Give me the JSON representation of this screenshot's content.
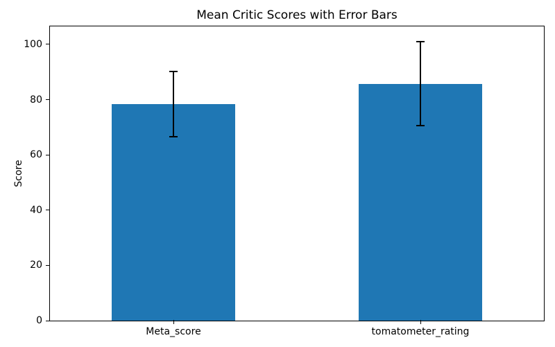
{
  "chart_data": {
    "type": "bar",
    "title": "Mean Critic Scores with Error Bars",
    "xlabel": "",
    "ylabel": "Score",
    "categories": [
      "Meta_score",
      "tomatometer_rating"
    ],
    "values": [
      78.4,
      85.7
    ],
    "errors": [
      11.8,
      15.2
    ],
    "yticks": [
      0,
      20,
      40,
      60,
      80,
      100
    ],
    "ylim": [
      0,
      106.5
    ],
    "xlim": [
      -0.5,
      1.5
    ],
    "bar_width": 0.5,
    "bar_color": "#1f77b4",
    "error_color": "#000000",
    "grid": false,
    "legend": "none"
  }
}
